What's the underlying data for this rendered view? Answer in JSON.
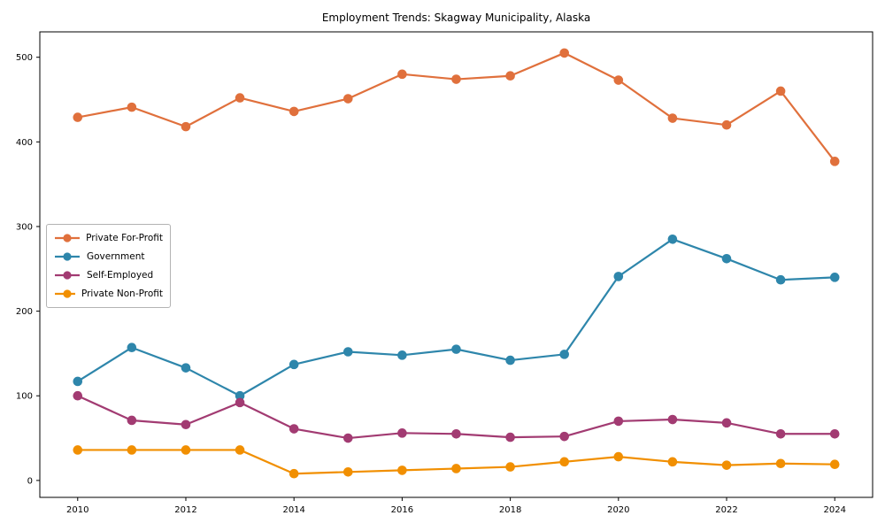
{
  "figure": {
    "background": "#ffffff"
  },
  "chart_data": {
    "type": "line",
    "title": "Employment Trends: Skagway Municipality, Alaska",
    "xlabel": "",
    "ylabel": "",
    "x": [
      2010,
      2011,
      2012,
      2013,
      2014,
      2015,
      2016,
      2017,
      2018,
      2019,
      2020,
      2021,
      2022,
      2023,
      2024
    ],
    "series": [
      {
        "name": "Private For-Profit",
        "color": "#E0703C",
        "values": [
          429,
          441,
          418,
          452,
          436,
          451,
          480,
          474,
          478,
          505,
          473,
          428,
          420,
          460,
          377
        ]
      },
      {
        "name": "Government",
        "color": "#2E86AB",
        "values": [
          117,
          157,
          133,
          100,
          137,
          152,
          148,
          155,
          142,
          149,
          241,
          285,
          262,
          237,
          240
        ]
      },
      {
        "name": "Self-Employed",
        "color": "#A23B72",
        "values": [
          100,
          71,
          66,
          92,
          61,
          50,
          56,
          55,
          51,
          52,
          70,
          72,
          68,
          55,
          55
        ]
      },
      {
        "name": "Private Non-Profit",
        "color": "#F18F01",
        "values": [
          36,
          36,
          36,
          36,
          8,
          10,
          12,
          14,
          16,
          22,
          28,
          22,
          18,
          20,
          19
        ]
      }
    ],
    "xticks": [
      2010,
      2012,
      2014,
      2016,
      2018,
      2020,
      2022,
      2024
    ],
    "yticks": [
      0,
      100,
      200,
      300,
      400,
      500
    ],
    "xlim": [
      2009.3,
      2024.7
    ],
    "ylim": [
      -20,
      530
    ],
    "grid": false,
    "legend_position": "center-left",
    "marker": "circle",
    "axis_color": "#000000"
  }
}
